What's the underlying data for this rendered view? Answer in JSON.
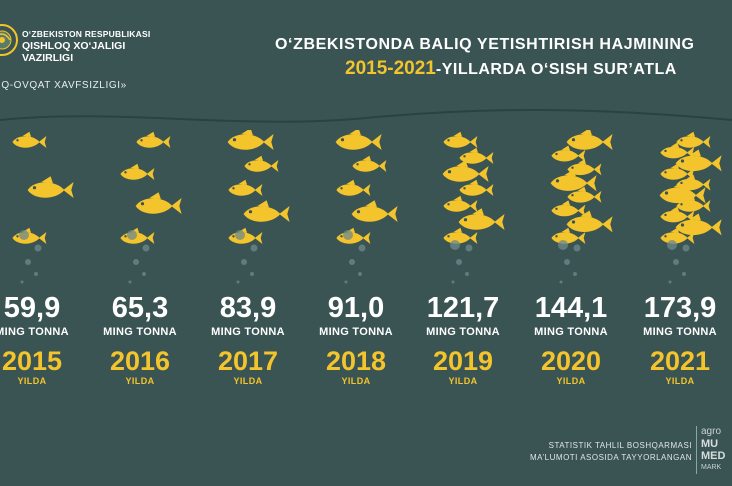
{
  "header": {
    "org_line1": "O‘ZBEKISTON RESPUBLIKASI",
    "org_line2": "QISHLOQ XO‘JALIGI",
    "org_line3": "VAZIRLIGI",
    "slogan": "IQ-OVQAT XAVFSIZLIGI»",
    "title_line1": "O‘ZBEKISTONDA BALIQ YETISHTIRISH HAJMINING",
    "title_years": "2015-2021",
    "title_rest": "-YILLARDA O‘SISH SUR’ATLA"
  },
  "chart_data": {
    "type": "bar",
    "categories": [
      "2015",
      "2016",
      "2017",
      "2018",
      "2019",
      "2020",
      "2021"
    ],
    "values": [
      59.9,
      65.3,
      83.9,
      91.0,
      121.7,
      144.1,
      173.9
    ],
    "value_labels": [
      "59,9",
      "65,3",
      "83,9",
      "91,0",
      "121,7",
      "144,1",
      "173,9"
    ],
    "unit": "MING TONNA",
    "year_suffix": "YILDA",
    "colors": {
      "fish": "#f3c42b",
      "value": "#ffffff",
      "year": "#f3c42b",
      "background": "#3a5353"
    }
  },
  "footer": {
    "line1": "STATISTIK TAHLIL BOSHQARMASI",
    "line2": "MA’LUMOTI ASOSIDA TAYYORLANGAN"
  },
  "brand": {
    "line1": "agro",
    "line2": "MU",
    "line3": "MED",
    "line4": "MARK"
  },
  "icons": [
    "emblem-icon",
    "fish-icon",
    "bubble-icon",
    "wave-line"
  ]
}
